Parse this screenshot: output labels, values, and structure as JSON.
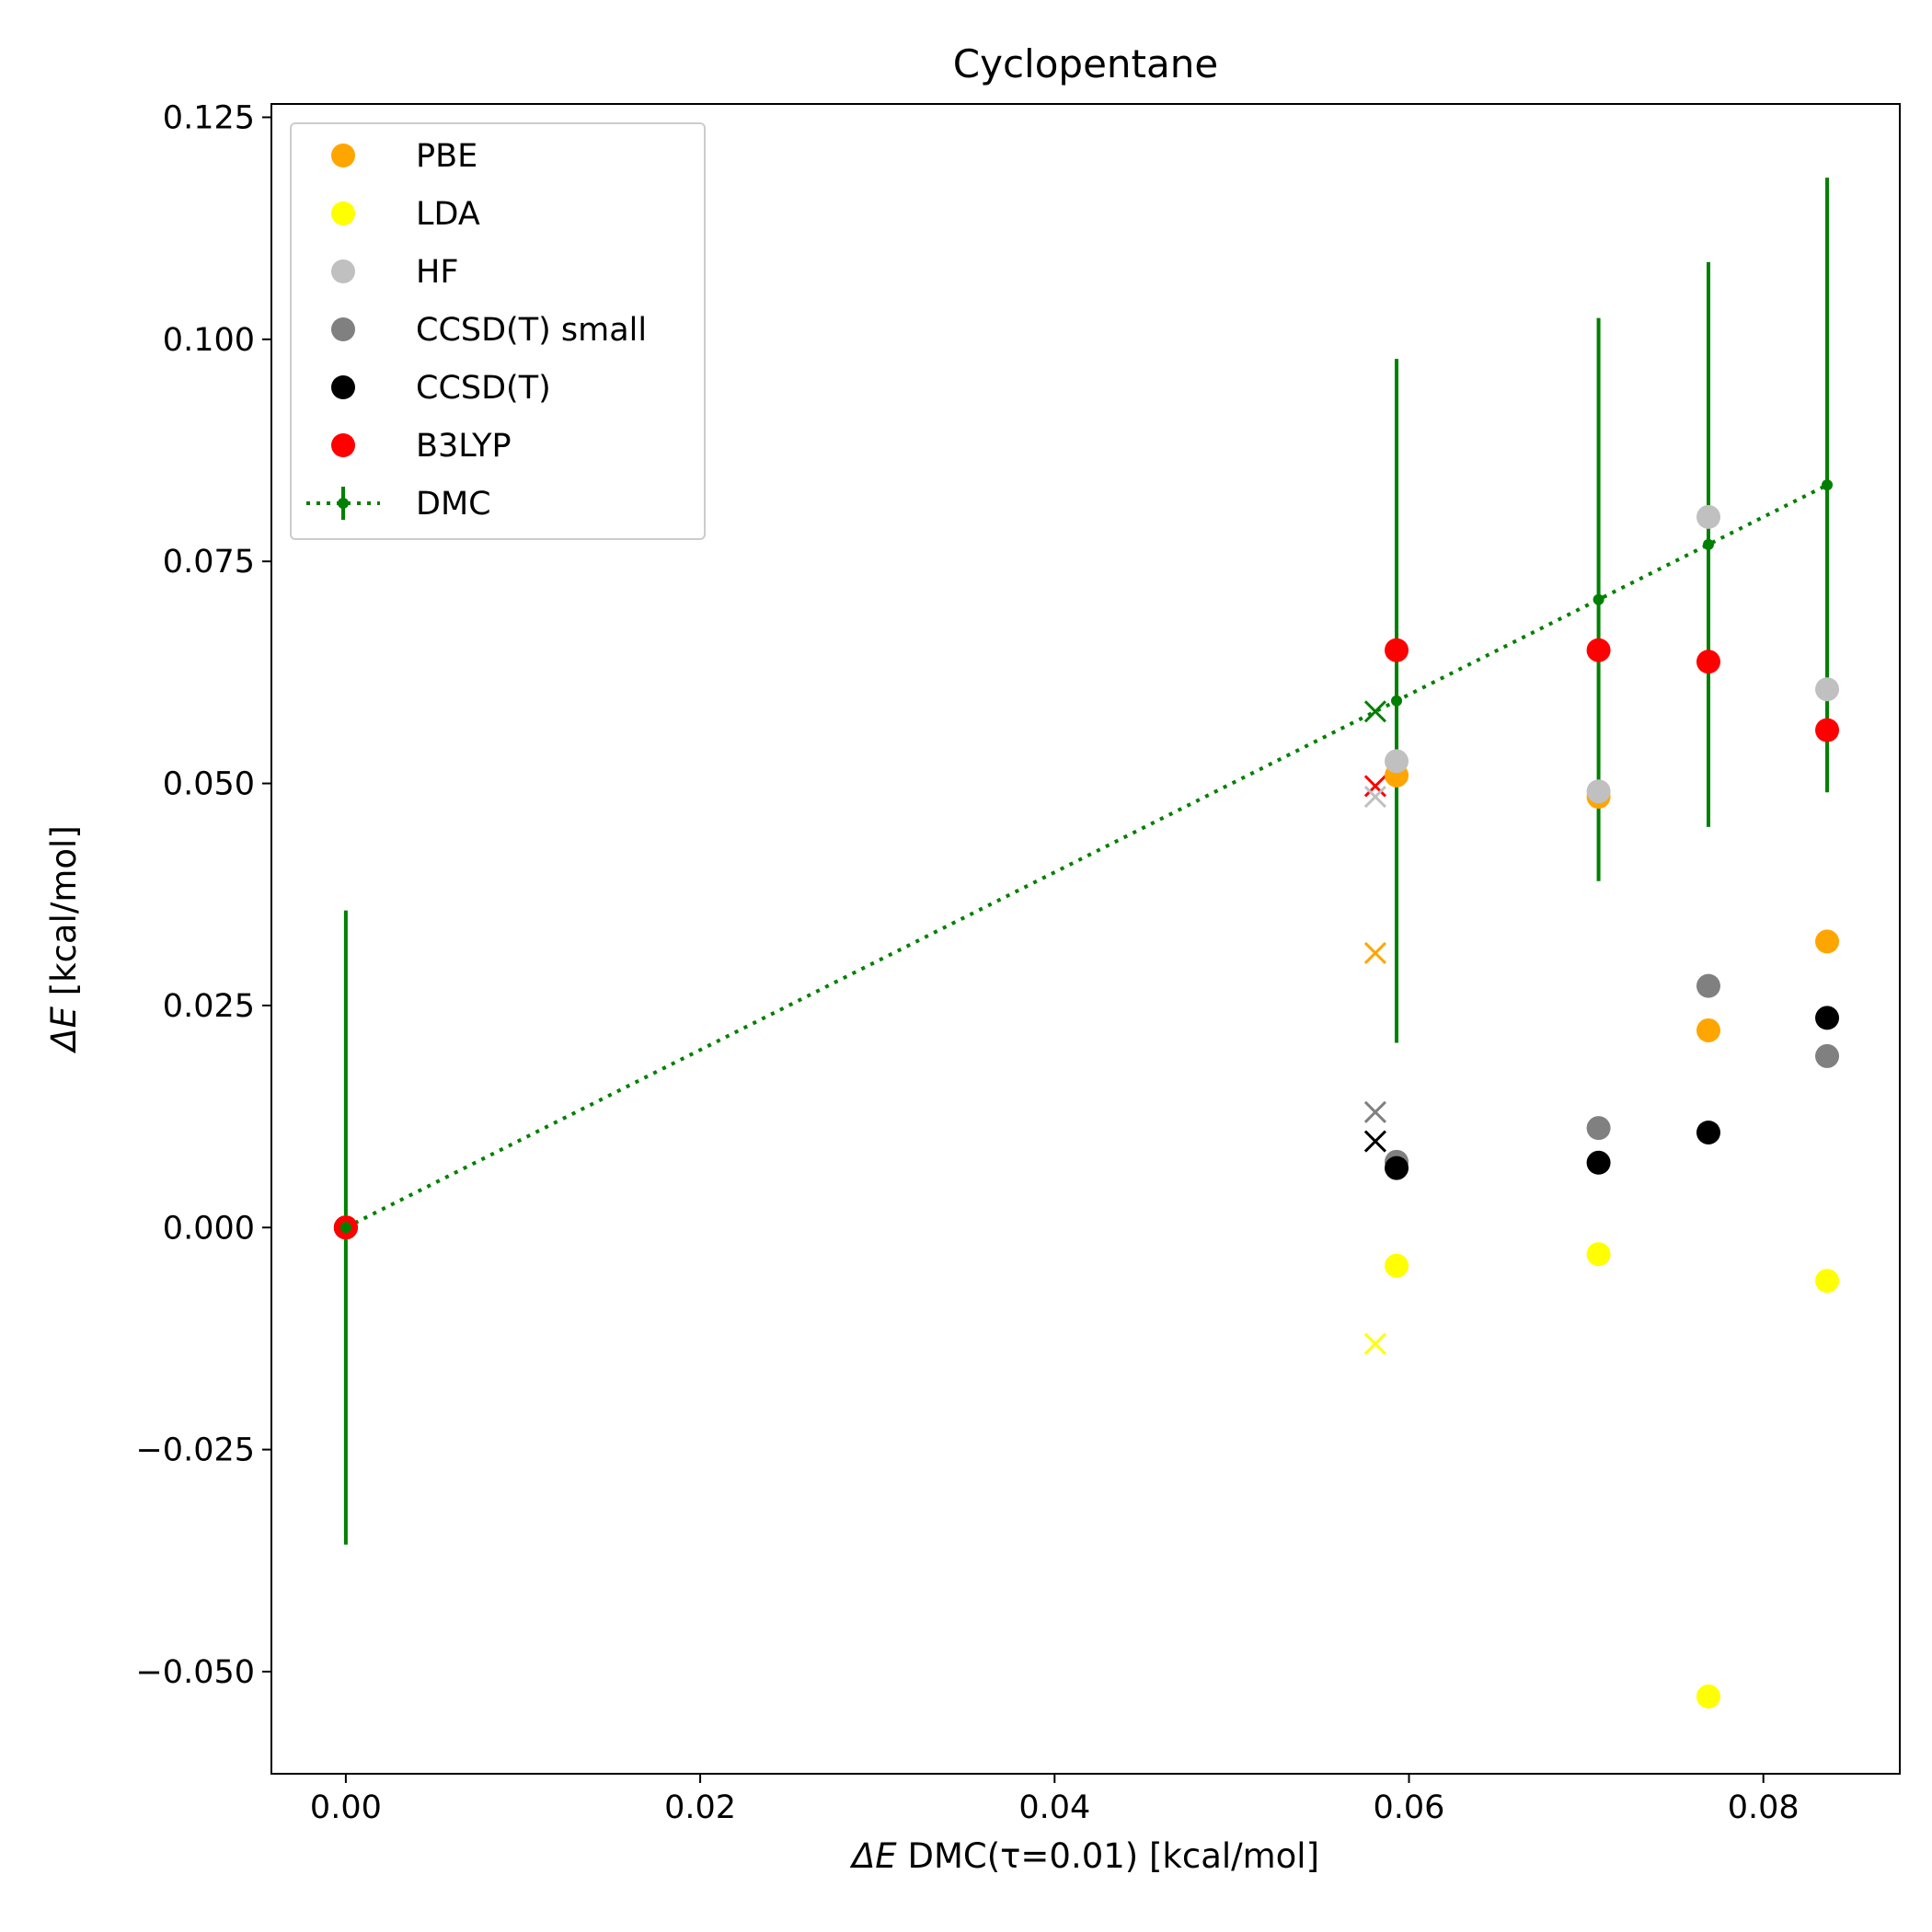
{
  "chart_data": {
    "type": "scatter",
    "title": "Cyclopentane",
    "xlabel_prefix": "ΔE",
    "xlabel_rest": " DMC(τ=0.01) [kcal/mol]",
    "ylabel_prefix": "ΔE",
    "ylabel_rest": " [kcal/mol]",
    "xlim": [
      -0.0042,
      0.0877
    ],
    "ylim": [
      -0.0615,
      0.1265
    ],
    "xticks": [
      0.0,
      0.02,
      0.04,
      0.06,
      0.08
    ],
    "xtick_labels": [
      "0.00",
      "0.02",
      "0.04",
      "0.06",
      "0.08"
    ],
    "yticks": [
      -0.05,
      -0.025,
      0.0,
      0.025,
      0.05,
      0.075,
      0.1,
      0.125
    ],
    "ytick_labels": [
      "−0.050",
      "−0.025",
      "0.000",
      "0.025",
      "0.050",
      "0.075",
      "0.100",
      "0.125"
    ],
    "legend_position": "top-left",
    "grid": false,
    "series": [
      {
        "name": "PBE",
        "color": "#ffa500",
        "marker": "circle",
        "points": [
          [
            0.0,
            0.0
          ],
          [
            0.0593,
            0.0509
          ],
          [
            0.0707,
            0.0485
          ],
          [
            0.0769,
            0.0222
          ],
          [
            0.0836,
            0.0322
          ]
        ]
      },
      {
        "name": "LDA",
        "color": "#ffff00",
        "marker": "circle",
        "points": [
          [
            0.0,
            0.0
          ],
          [
            0.0593,
            -0.0043
          ],
          [
            0.0707,
            -0.003
          ],
          [
            0.0769,
            -0.0528
          ],
          [
            0.0836,
            -0.006
          ]
        ]
      },
      {
        "name": "HF",
        "color": "#c0c0c0",
        "marker": "circle",
        "points": [
          [
            0.0,
            0.0
          ],
          [
            0.0593,
            0.0525
          ],
          [
            0.0707,
            0.0491
          ],
          [
            0.0769,
            0.08
          ],
          [
            0.0836,
            0.0606
          ]
        ]
      },
      {
        "name": "CCSD(T) small",
        "color": "#808080",
        "marker": "circle",
        "points": [
          [
            0.0,
            0.0
          ],
          [
            0.0593,
            0.0074
          ],
          [
            0.0707,
            0.0112
          ],
          [
            0.0769,
            0.0272
          ],
          [
            0.0836,
            0.0193
          ]
        ]
      },
      {
        "name": "CCSD(T)",
        "color": "#000000",
        "marker": "circle",
        "points": [
          [
            0.0,
            0.0
          ],
          [
            0.0593,
            0.0067
          ],
          [
            0.0707,
            0.0073
          ],
          [
            0.0769,
            0.0107
          ],
          [
            0.0836,
            0.0236
          ]
        ]
      },
      {
        "name": "B3LYP",
        "color": "#ff0000",
        "marker": "circle",
        "points": [
          [
            0.0,
            0.0
          ],
          [
            0.0593,
            0.065
          ],
          [
            0.0707,
            0.065
          ],
          [
            0.0769,
            0.0637
          ],
          [
            0.0836,
            0.056
          ]
        ]
      }
    ],
    "dmc": {
      "name": "DMC",
      "color": "#008000",
      "points": [
        {
          "x": 0.0,
          "y": 0.0,
          "err": 0.0357
        },
        {
          "x": 0.0593,
          "y": 0.0593,
          "err": 0.0385
        },
        {
          "x": 0.0707,
          "y": 0.0707,
          "err": 0.0317
        },
        {
          "x": 0.0769,
          "y": 0.0769,
          "err": 0.0318
        },
        {
          "x": 0.0836,
          "y": 0.0836,
          "err": 0.0346
        }
      ]
    },
    "x_markers": [
      {
        "color": "#008000",
        "x": 0.0581,
        "y": 0.0581
      },
      {
        "color": "#ff0000",
        "x": 0.0581,
        "y": 0.0497
      },
      {
        "color": "#c0c0c0",
        "x": 0.0581,
        "y": 0.0485
      },
      {
        "color": "#ffa500",
        "x": 0.0581,
        "y": 0.0309
      },
      {
        "color": "#808080",
        "x": 0.0581,
        "y": 0.013
      },
      {
        "color": "#000000",
        "x": 0.0581,
        "y": 0.0097
      },
      {
        "color": "#ffff00",
        "x": 0.0581,
        "y": -0.0131
      }
    ]
  }
}
